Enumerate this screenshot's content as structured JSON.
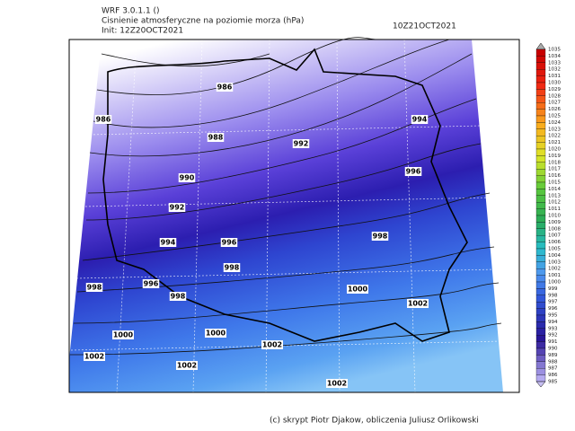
{
  "header": {
    "model": "WRF 3.0.1.1 ()",
    "field": "Cisnienie atmosferyczne na poziomie morza (hPa)",
    "init": "Init: 12Z20OCT2021",
    "valid": "10Z21OCT2021"
  },
  "contour_labels": [
    "986",
    "986",
    "988",
    "992",
    "994",
    "990",
    "996",
    "992",
    "994",
    "996",
    "998",
    "998",
    "998",
    "996",
    "998",
    "1000",
    "1002",
    "1000",
    "1000",
    "1002",
    "1002",
    "1002",
    "1002"
  ],
  "colorbar": {
    "labels": [
      1035,
      1034,
      1033,
      1032,
      1031,
      1030,
      1029,
      1028,
      1027,
      1026,
      1025,
      1024,
      1023,
      1022,
      1021,
      1020,
      1019,
      1018,
      1017,
      1016,
      1015,
      1014,
      1013,
      1012,
      1011,
      1010,
      1009,
      1008,
      1007,
      1006,
      1005,
      1004,
      1003,
      1002,
      1001,
      1000,
      999,
      998,
      997,
      996,
      995,
      994,
      993,
      992,
      991,
      990,
      989,
      988,
      987,
      986,
      985
    ]
  },
  "footer": "(c) skrypt Piotr Djakow, obliczenia Juliusz Orlikowski"
}
